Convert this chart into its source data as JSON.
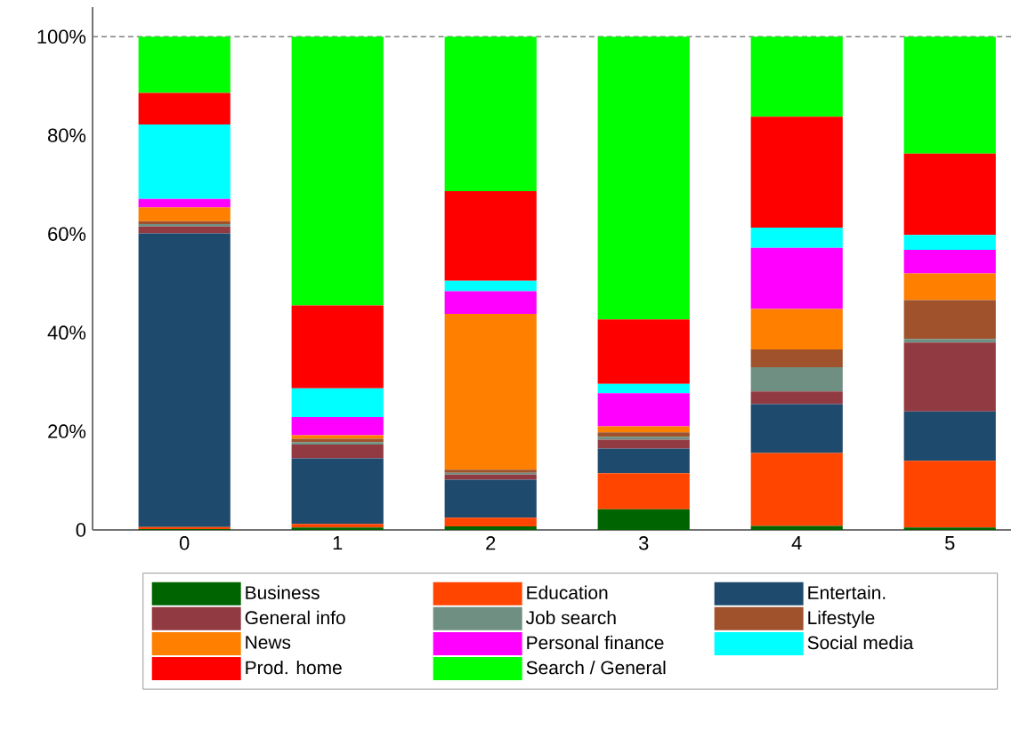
{
  "chart_data": {
    "type": "bar",
    "stacked": true,
    "categories": [
      "0",
      "1",
      "2",
      "3",
      "4",
      "5"
    ],
    "series": [
      {
        "name": "Business",
        "color": "#006400",
        "values": [
          0.2,
          0.5,
          0.7,
          4.2,
          0.8,
          0.5
        ]
      },
      {
        "name": "Education",
        "color": "#ff4500",
        "values": [
          0.4,
          0.7,
          1.8,
          7.3,
          14.8,
          13.5
        ]
      },
      {
        "name": "Entertain.",
        "color": "#1e4a6e",
        "values": [
          59.5,
          13.3,
          7.7,
          5.0,
          9.9,
          10.0
        ]
      },
      {
        "name": "General info",
        "color": "#923a42",
        "values": [
          1.4,
          2.8,
          1.0,
          1.8,
          2.6,
          14.0
        ]
      },
      {
        "name": "Job search",
        "color": "#6f8f82",
        "values": [
          0.5,
          0.5,
          0.4,
          0.6,
          4.9,
          0.7
        ]
      },
      {
        "name": "Lifestyle",
        "color": "#a0522d",
        "values": [
          0.6,
          0.7,
          0.6,
          0.9,
          3.6,
          7.9
        ]
      },
      {
        "name": "News",
        "color": "#ff8000",
        "values": [
          2.8,
          0.7,
          31.6,
          1.2,
          8.2,
          5.4
        ]
      },
      {
        "name": "Personal finance",
        "color": "#ff00ff",
        "values": [
          1.7,
          3.7,
          4.6,
          6.7,
          12.4,
          4.8
        ]
      },
      {
        "name": "Social media",
        "color": "#00ffff",
        "values": [
          15.1,
          5.8,
          2.1,
          1.9,
          4.1,
          3.0
        ]
      },
      {
        "name": "Prod. home",
        "color": "#ff0000",
        "values": [
          6.4,
          16.8,
          18.2,
          13.1,
          22.5,
          16.5
        ]
      },
      {
        "name": "Search / General",
        "color": "#00ff00",
        "values": [
          11.4,
          54.5,
          31.3,
          57.3,
          16.2,
          23.7
        ]
      }
    ],
    "ylim": [
      0,
      106
    ],
    "yticks": [
      0,
      {
        "value": 20,
        "label": "20%"
      },
      {
        "value": 40,
        "label": "40%"
      },
      {
        "value": 60,
        "label": "60%"
      },
      {
        "value": 80,
        "label": "80%"
      },
      {
        "value": 100,
        "label": "100%"
      }
    ],
    "ref_lines": [
      {
        "axis": "y",
        "value": 100,
        "color": "#808080",
        "line_style": "dashed"
      }
    ],
    "legend": "bottom",
    "grid": false
  }
}
